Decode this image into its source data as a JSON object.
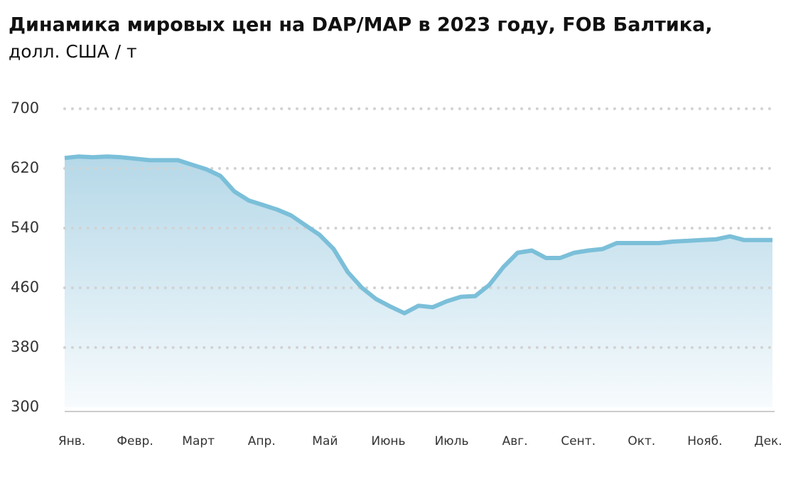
{
  "chart_data": {
    "type": "area",
    "title": "Динамика мировых цен на DAP/MAP в 2023 году, FOB Балтика,",
    "subtitle": "долл. США / т",
    "xtick_labels": [
      "Янв.",
      "Февр.",
      "Март",
      "Апр.",
      "Май",
      "Июнь",
      "Июль",
      "Авг.",
      "Сент.",
      "Окт.",
      "Нояб.",
      "Дек."
    ],
    "values": [
      634,
      636,
      635,
      636,
      635,
      633,
      631,
      631,
      631,
      625,
      619,
      610,
      589,
      577,
      571,
      565,
      557,
      544,
      531,
      512,
      481,
      460,
      445,
      435,
      426,
      436,
      434,
      442,
      448,
      449,
      464,
      488,
      507,
      510,
      500,
      500,
      507,
      510,
      512,
      520,
      520,
      520,
      520,
      522,
      523,
      524,
      525,
      529,
      524,
      524,
      524
    ],
    "color": "#7bbfd9",
    "ylim": [
      300,
      700
    ],
    "yticks": [
      300,
      380,
      460,
      540,
      620,
      700
    ],
    "grid": true
  }
}
